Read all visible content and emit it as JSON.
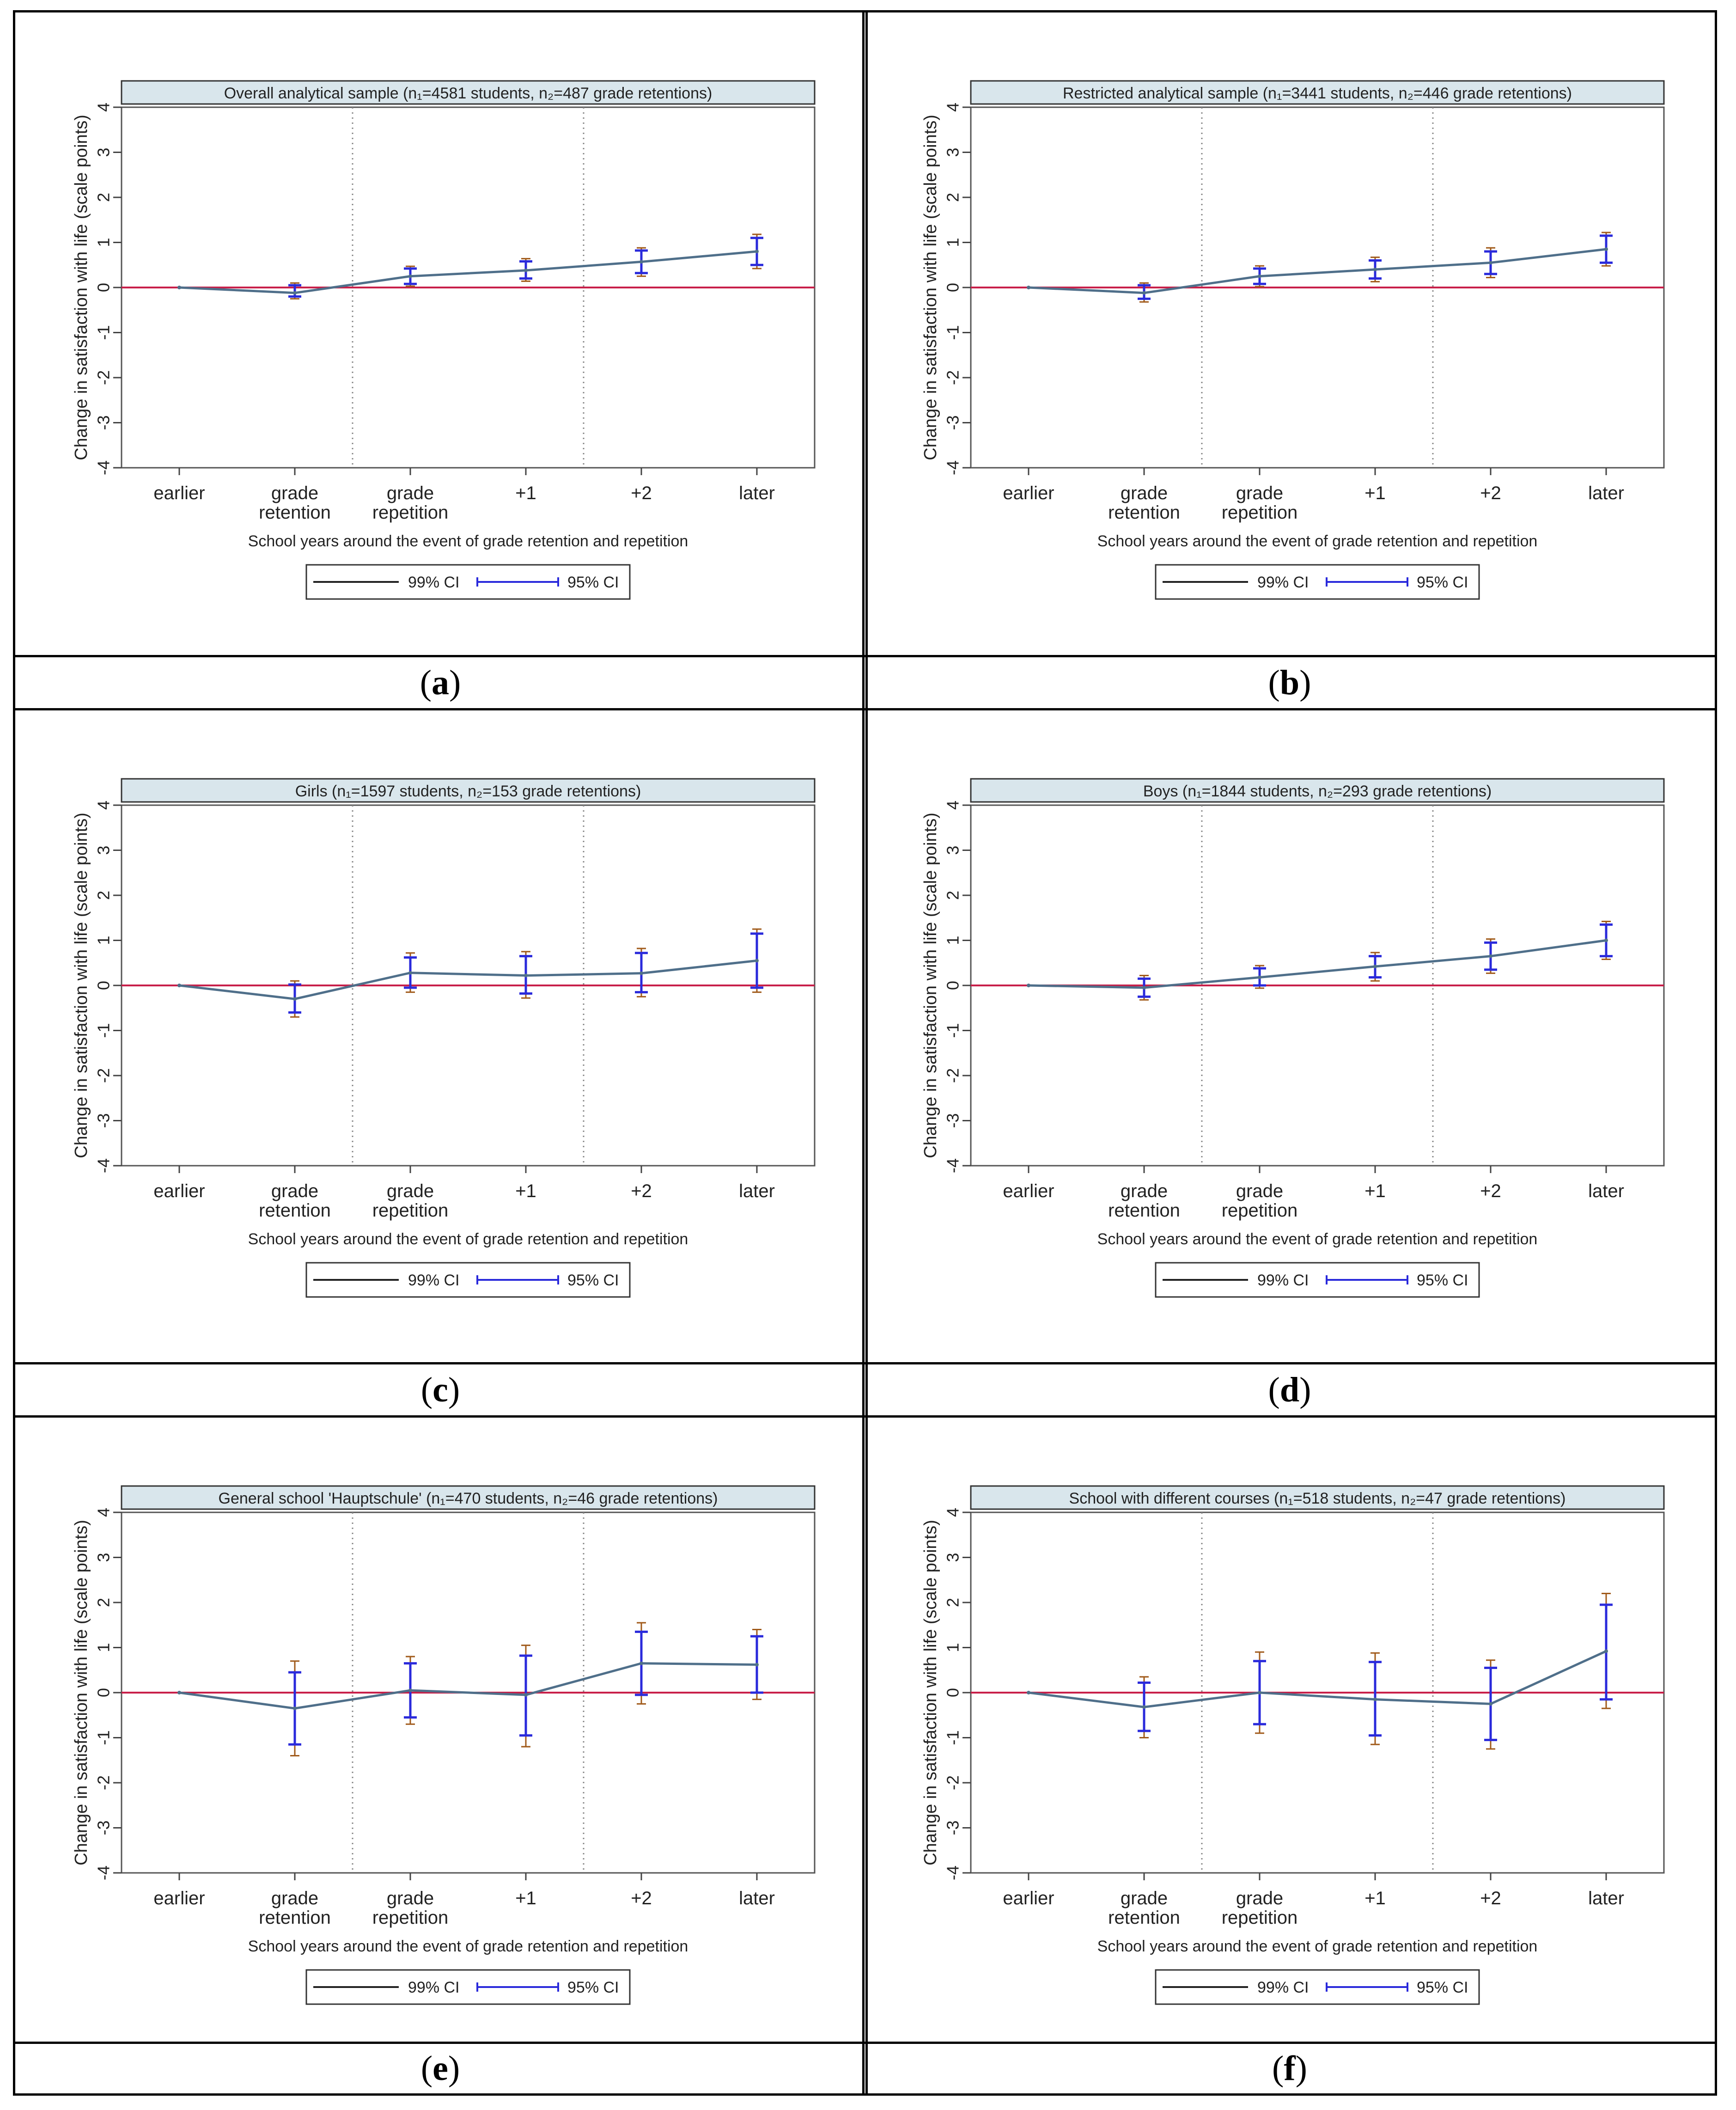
{
  "x_categories": [
    "earlier",
    "grade\nretention",
    "grade\nrepetition",
    "+1",
    "+2",
    "later"
  ],
  "x_axis_title": "School years around the event of grade retention and repetition",
  "y_axis_title": "Change in satisfaction with life (scale points)",
  "y_ticks": [
    4,
    3,
    2,
    1,
    0,
    -1,
    -2,
    -3,
    -4
  ],
  "legend": {
    "ci99": "99% CI",
    "ci95": "95% CI"
  },
  "colors": {
    "line": "#4f6f8a",
    "zero_line": "#c8204a",
    "ci95": "#2a2adb",
    "ci99": "#a05a1a",
    "title_bg": "#d9e6ec"
  },
  "panels": [
    {
      "label": "a",
      "chart_data": {
        "type": "line",
        "title": "Overall analytical sample (n₁=4581 students, n₂=487 grade retentions)",
        "categories": [
          "earlier",
          "grade retention",
          "grade repetition",
          "+1",
          "+2",
          "later"
        ],
        "ylim": [
          -4,
          4
        ],
        "series": [
          {
            "name": "",
            "values": [
              0,
              -0.12,
              0.25,
              0.38,
              0.57,
              0.8
            ]
          }
        ],
        "ci95": [
          null,
          [
            -0.2,
            0.05
          ],
          [
            0.08,
            0.42
          ],
          [
            0.2,
            0.58
          ],
          [
            0.32,
            0.82
          ],
          [
            0.5,
            1.1
          ]
        ],
        "ci99": [
          null,
          [
            -0.25,
            0.1
          ],
          [
            0.03,
            0.47
          ],
          [
            0.14,
            0.64
          ],
          [
            0.25,
            0.88
          ],
          [
            0.42,
            1.18
          ]
        ]
      }
    },
    {
      "label": "b",
      "chart_data": {
        "type": "line",
        "title": "Restricted analytical sample (n₁=3441 students, n₂=446 grade retentions)",
        "categories": [
          "earlier",
          "grade retention",
          "grade repetition",
          "+1",
          "+2",
          "later"
        ],
        "ylim": [
          -4,
          4
        ],
        "series": [
          {
            "name": "",
            "values": [
              0,
              -0.12,
              0.25,
              0.4,
              0.55,
              0.85
            ]
          }
        ],
        "ci95": [
          null,
          [
            -0.25,
            0.05
          ],
          [
            0.08,
            0.42
          ],
          [
            0.2,
            0.6
          ],
          [
            0.3,
            0.8
          ],
          [
            0.55,
            1.15
          ]
        ],
        "ci99": [
          null,
          [
            -0.32,
            0.1
          ],
          [
            0.02,
            0.48
          ],
          [
            0.13,
            0.67
          ],
          [
            0.22,
            0.88
          ],
          [
            0.48,
            1.22
          ]
        ]
      }
    },
    {
      "label": "c",
      "chart_data": {
        "type": "line",
        "title": "Girls (n₁=1597 students, n₂=153 grade retentions)",
        "categories": [
          "earlier",
          "grade retention",
          "grade repetition",
          "+1",
          "+2",
          "later"
        ],
        "ylim": [
          -4,
          4
        ],
        "series": [
          {
            "name": "",
            "values": [
              0,
              -0.3,
              0.28,
              0.22,
              0.27,
              0.55
            ]
          }
        ],
        "ci95": [
          null,
          [
            -0.6,
            0.02
          ],
          [
            -0.05,
            0.62
          ],
          [
            -0.18,
            0.65
          ],
          [
            -0.15,
            0.72
          ],
          [
            -0.05,
            1.15
          ]
        ],
        "ci99": [
          null,
          [
            -0.7,
            0.1
          ],
          [
            -0.15,
            0.72
          ],
          [
            -0.28,
            0.75
          ],
          [
            -0.25,
            0.82
          ],
          [
            -0.15,
            1.25
          ]
        ]
      }
    },
    {
      "label": "d",
      "chart_data": {
        "type": "line",
        "title": "Boys (n₁=1844 students, n₂=293 grade retentions)",
        "categories": [
          "earlier",
          "grade retention",
          "grade repetition",
          "+1",
          "+2",
          "later"
        ],
        "ylim": [
          -4,
          4
        ],
        "series": [
          {
            "name": "",
            "values": [
              0,
              -0.05,
              0.18,
              0.42,
              0.65,
              1.0
            ]
          }
        ],
        "ci95": [
          null,
          [
            -0.25,
            0.15
          ],
          [
            0.0,
            0.38
          ],
          [
            0.18,
            0.65
          ],
          [
            0.35,
            0.95
          ],
          [
            0.65,
            1.35
          ]
        ],
        "ci99": [
          null,
          [
            -0.32,
            0.22
          ],
          [
            -0.06,
            0.44
          ],
          [
            0.1,
            0.73
          ],
          [
            0.27,
            1.03
          ],
          [
            0.58,
            1.42
          ]
        ]
      }
    },
    {
      "label": "e",
      "chart_data": {
        "type": "line",
        "title": "General school 'Hauptschule' (n₁=470 students, n₂=46 grade retentions)",
        "categories": [
          "earlier",
          "grade retention",
          "grade repetition",
          "+1",
          "+2",
          "later"
        ],
        "ylim": [
          -4,
          4
        ],
        "series": [
          {
            "name": "",
            "values": [
              0,
              -0.35,
              0.05,
              -0.05,
              0.65,
              0.62
            ]
          }
        ],
        "ci95": [
          null,
          [
            -1.15,
            0.45
          ],
          [
            -0.55,
            0.65
          ],
          [
            -0.95,
            0.82
          ],
          [
            -0.05,
            1.35
          ],
          [
            0.0,
            1.25
          ]
        ],
        "ci99": [
          null,
          [
            -1.4,
            0.7
          ],
          [
            -0.7,
            0.8
          ],
          [
            -1.2,
            1.05
          ],
          [
            -0.25,
            1.55
          ],
          [
            -0.15,
            1.4
          ]
        ]
      }
    },
    {
      "label": "f",
      "chart_data": {
        "type": "line",
        "title": "School with different courses (n₁=518 students, n₂=47 grade retentions)",
        "categories": [
          "earlier",
          "grade retention",
          "grade repetition",
          "+1",
          "+2",
          "later"
        ],
        "ylim": [
          -4,
          4
        ],
        "series": [
          {
            "name": "",
            "values": [
              0,
              -0.32,
              0.0,
              -0.15,
              -0.25,
              0.92
            ]
          }
        ],
        "ci95": [
          null,
          [
            -0.85,
            0.22
          ],
          [
            -0.7,
            0.7
          ],
          [
            -0.95,
            0.68
          ],
          [
            -1.05,
            0.55
          ],
          [
            -0.15,
            1.95
          ]
        ],
        "ci99": [
          null,
          [
            -1.0,
            0.35
          ],
          [
            -0.9,
            0.9
          ],
          [
            -1.15,
            0.88
          ],
          [
            -1.25,
            0.72
          ],
          [
            -0.35,
            2.2
          ]
        ]
      }
    }
  ]
}
